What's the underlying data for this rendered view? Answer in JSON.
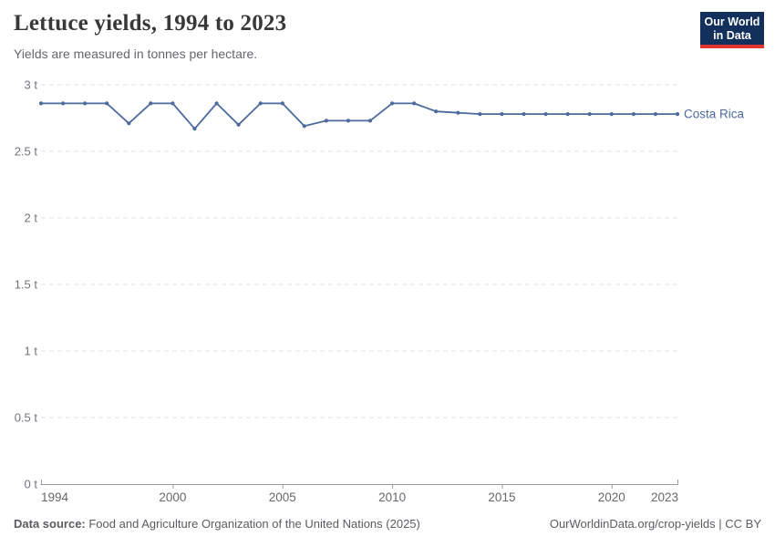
{
  "header": {
    "title": "Lettuce yields, 1994 to 2023",
    "subtitle": "Yields are measured in tonnes per hectare."
  },
  "logo": {
    "line1": "Our World",
    "line2": "in Data",
    "bg_color": "#12305b",
    "accent_color": "#e23431",
    "text_color": "#ffffff"
  },
  "chart_data": {
    "type": "line",
    "title": "Lettuce yields, 1994 to 2023",
    "ylabel": "tonnes per hectare",
    "xlabel": "",
    "x": [
      1994,
      1995,
      1996,
      1997,
      1998,
      1999,
      2000,
      2001,
      2002,
      2003,
      2004,
      2005,
      2006,
      2007,
      2008,
      2009,
      2010,
      2011,
      2012,
      2013,
      2014,
      2015,
      2016,
      2017,
      2018,
      2019,
      2020,
      2021,
      2022,
      2023
    ],
    "series": [
      {
        "name": "Costa Rica",
        "color": "#4c6a9c",
        "values": [
          2.86,
          2.86,
          2.86,
          2.86,
          2.71,
          2.86,
          2.86,
          2.67,
          2.86,
          2.7,
          2.86,
          2.86,
          2.69,
          2.73,
          2.73,
          2.73,
          2.86,
          2.86,
          2.8,
          2.79,
          2.78,
          2.78,
          2.78,
          2.78,
          2.78,
          2.78,
          2.78,
          2.78,
          2.78,
          2.78
        ]
      }
    ],
    "xlim": [
      1994,
      2023
    ],
    "ylim": [
      0,
      3
    ],
    "x_ticks": [
      1994,
      2000,
      2005,
      2010,
      2015,
      2020,
      2023
    ],
    "x_tick_labels": [
      "1994",
      "2000",
      "2005",
      "2010",
      "2015",
      "2020",
      "2023"
    ],
    "y_ticks": [
      0,
      0.5,
      1,
      1.5,
      2,
      2.5,
      3
    ],
    "y_tick_labels": [
      "0 t",
      "0.5 t",
      "1 t",
      "1.5 t",
      "2 t",
      "2.5 t",
      "3 t"
    ],
    "grid": "horizontal-dashed",
    "legend_position": "line-end-label"
  },
  "footer": {
    "source_label": "Data source:",
    "source_text": " Food and Agriculture Organization of the United Nations (2025)",
    "credit": "OurWorldinData.org/crop-yields | CC BY"
  }
}
